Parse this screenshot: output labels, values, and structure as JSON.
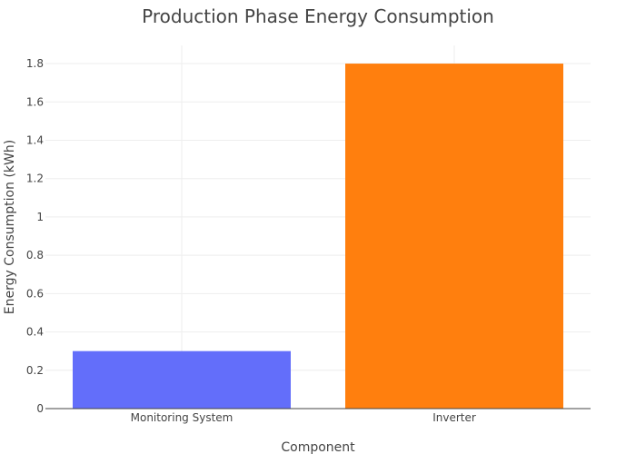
{
  "chart_data": {
    "type": "bar",
    "title": "Production Phase Energy Consumption",
    "xlabel": "Component",
    "ylabel": "Energy Consumption (kWh)",
    "categories": [
      "Monitoring System",
      "Inverter"
    ],
    "values": [
      0.3,
      1.8
    ],
    "bar_colors": [
      "#636efa",
      "#ff7f0e"
    ],
    "ylim": [
      0,
      1.895
    ],
    "yticks": [
      0,
      0.2,
      0.4,
      0.6,
      0.8,
      1,
      1.2,
      1.4,
      1.6,
      1.8
    ],
    "ytick_labels": [
      "0",
      "0.2",
      "0.4",
      "0.6",
      "0.8",
      "1",
      "1.2",
      "1.4",
      "1.6",
      "1.8"
    ],
    "grid": true,
    "legend": "none"
  }
}
